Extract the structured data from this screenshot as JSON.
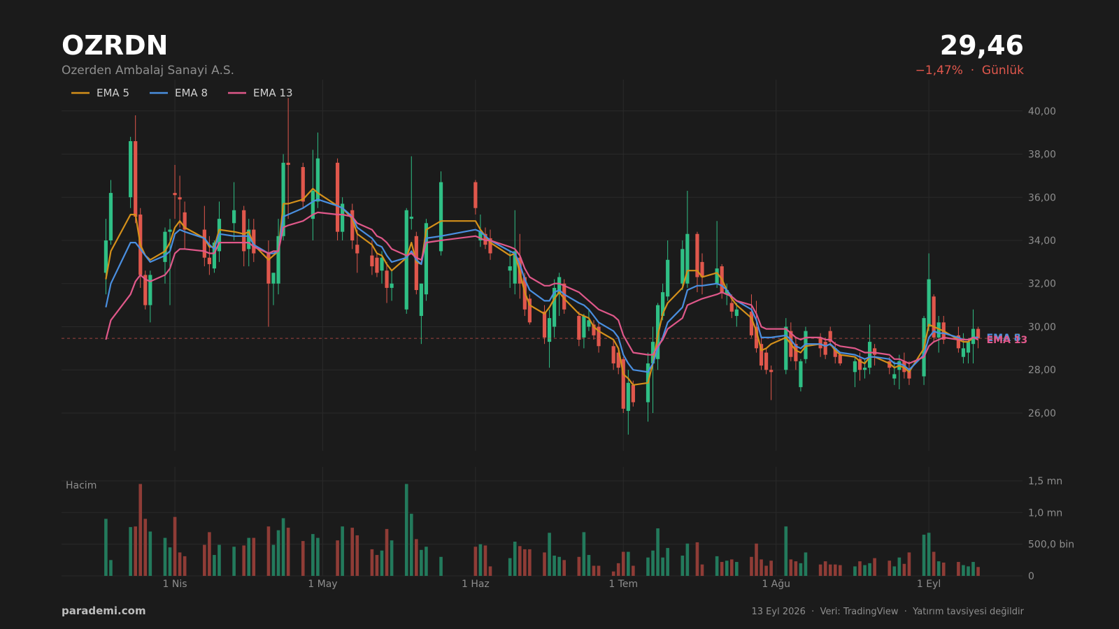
{
  "header": {
    "symbol": "OZRDN",
    "company": "Ozerden Ambalaj Sanayi A.S.",
    "change": "−1,47%",
    "period": "Günlük"
  },
  "chart_data": {
    "type": "candlestick",
    "price": 29.46,
    "price_label": "29,46",
    "xlim": [
      "03-09",
      "09-20"
    ],
    "xticks": [
      {
        "value": "04-01",
        "label": "1 Nis"
      },
      {
        "value": "05-01",
        "label": "1 May"
      },
      {
        "value": "06-01",
        "label": "1 Haz"
      },
      {
        "value": "07-01",
        "label": "1 Tem"
      },
      {
        "value": "08-01",
        "label": "1 Ağu"
      },
      {
        "value": "09-01",
        "label": "1 Eyl"
      }
    ],
    "ylim": [
      24.25,
      41.45
    ],
    "yticks": [
      {
        "value": 26,
        "label": "26,00"
      },
      {
        "value": 28,
        "label": "28,00"
      },
      {
        "value": 30,
        "label": "30,00"
      },
      {
        "value": 32,
        "label": "32,00"
      },
      {
        "value": 34,
        "label": "34,00"
      },
      {
        "value": 36,
        "label": "36,00"
      },
      {
        "value": 38,
        "label": "38,00"
      },
      {
        "value": 40,
        "label": "40,00"
      }
    ],
    "volume_label": "Hacim",
    "volume_ylim": [
      0,
      1720000
    ],
    "volume_yticks": [
      0,
      {
        "value": 500000,
        "label": "500,0 bin"
      },
      {
        "value": 1000000,
        "label": "1,0 mn"
      },
      {
        "value": 1500000,
        "label": "1,5 mn"
      }
    ],
    "grid": true,
    "up_color": "#2fbf85",
    "down_color": "#e0574c",
    "volume_up_color": "#237a5c",
    "volume_down_color": "#8f3c36",
    "price_line_color": "#c0504a",
    "x": [
      "03-18",
      "03-19",
      "03-23",
      "03-24",
      "03-25",
      "03-26",
      "03-27",
      "03-30",
      "03-31",
      "04-01",
      "04-02",
      "04-03",
      "04-07",
      "04-08",
      "04-09",
      "04-10",
      "04-13",
      "04-15",
      "04-16",
      "04-17",
      "04-20",
      "04-21",
      "04-22",
      "04-23",
      "04-24",
      "04-27",
      "04-29",
      "04-30",
      "05-04",
      "05-05",
      "05-07",
      "05-08",
      "05-11",
      "05-12",
      "05-13",
      "05-14",
      "05-15",
      "05-18",
      "05-19",
      "05-20",
      "05-21",
      "05-22",
      "05-25",
      "06-01",
      "06-02",
      "06-03",
      "06-04",
      "06-08",
      "06-09",
      "06-10",
      "06-11",
      "06-12",
      "06-15",
      "06-16",
      "06-17",
      "06-18",
      "06-19",
      "06-22",
      "06-23",
      "06-24",
      "06-25",
      "06-26",
      "06-29",
      "06-30",
      "07-01",
      "07-02",
      "07-03",
      "07-06",
      "07-07",
      "07-08",
      "07-09",
      "07-10",
      "07-13",
      "07-14",
      "07-16",
      "07-17",
      "07-20",
      "07-21",
      "07-22",
      "07-23",
      "07-24",
      "07-27",
      "07-28",
      "07-29",
      "07-30",
      "07-31",
      "08-03",
      "08-04",
      "08-05",
      "08-06",
      "08-07",
      "08-10",
      "08-11",
      "08-12",
      "08-13",
      "08-14",
      "08-17",
      "08-18",
      "08-19",
      "08-20",
      "08-21",
      "08-24",
      "08-25",
      "08-26",
      "08-27",
      "08-28",
      "08-31",
      "09-01",
      "09-02",
      "09-03",
      "09-04",
      "09-07",
      "09-08",
      "09-09",
      "09-10",
      "09-11"
    ],
    "open": [
      32.5,
      34,
      36,
      38.6,
      35.2,
      32.4,
      31,
      33,
      34.4,
      36.2,
      36,
      35.3,
      34.5,
      33.2,
      32.7,
      33.5,
      34.8,
      35.4,
      33.6,
      34.5,
      33.4,
      32,
      32,
      34.2,
      37.6,
      37.4,
      35,
      35.8,
      37.6,
      34.4,
      35.4,
      33.8,
      33.3,
      33.2,
      32.6,
      32.6,
      31.8,
      30.8,
      35,
      34.2,
      30.5,
      31.5,
      33.5,
      36.7,
      34,
      34.3,
      34.1,
      32.6,
      32,
      33.2,
      32.3,
      31.3,
      30.7,
      29.3,
      30,
      31.5,
      32,
      30.5,
      29.5,
      30,
      30.1,
      30,
      29.1,
      28.8,
      28.5,
      26.1,
      27.3,
      26.5,
      28.3,
      28.5,
      30.5,
      31.4,
      32,
      32,
      34.3,
      33,
      32,
      32.8,
      31.5,
      31.1,
      30.5,
      30.7,
      30,
      29.2,
      28.8,
      28,
      28,
      29.8,
      29.2,
      27.2,
      28.5,
      29.5,
      29.3,
      29.8,
      29,
      28.7,
      27.9,
      28.5,
      28,
      28.1,
      29,
      28.4,
      27.6,
      28,
      28.4,
      28,
      27.7,
      30,
      31.4,
      29.5,
      30.2,
      29.6,
      28.6,
      28.8,
      29.2,
      29.9
    ],
    "high": [
      35,
      36.8,
      38.8,
      39.8,
      35.5,
      32.6,
      32.6,
      34.6,
      35,
      37.5,
      37,
      35.8,
      35.6,
      34.2,
      34,
      35.8,
      36.7,
      35.6,
      35,
      35,
      34,
      32.5,
      35,
      38,
      40.6,
      37.6,
      38.2,
      39,
      37.8,
      36,
      35.7,
      34.5,
      34,
      33.4,
      33.5,
      33,
      32.6,
      35.5,
      37.9,
      34.4,
      32,
      35,
      37.2,
      36.8,
      35.2,
      34.6,
      34.5,
      33.5,
      35.4,
      34.3,
      32.5,
      31.5,
      31,
      30.8,
      32.2,
      32.5,
      32.2,
      30.7,
      30.6,
      30.8,
      30.3,
      30.2,
      29.4,
      29,
      28.6,
      28,
      27.5,
      28.8,
      30,
      31.1,
      32,
      34,
      34,
      36.3,
      34.4,
      33.4,
      34.9,
      32.9,
      32,
      31.5,
      31.1,
      31.5,
      31.2,
      29.6,
      29,
      28.2,
      30.4,
      30.2,
      29.5,
      28.5,
      30,
      29.7,
      29.5,
      30,
      29.3,
      28.8,
      28.6,
      28.8,
      28.5,
      30.1,
      29.2,
      28.6,
      28.4,
      28.7,
      28.8,
      28.4,
      30.5,
      33.4,
      31.5,
      30.5,
      30.5,
      30,
      29.7,
      29.4,
      30.8,
      30
    ],
    "low": [
      31.5,
      33.8,
      35.5,
      34.8,
      31.8,
      30.8,
      30.2,
      32,
      31,
      35,
      34.6,
      33.6,
      32.8,
      32.4,
      32.5,
      33,
      34,
      32.8,
      32.8,
      33,
      30,
      31,
      31.5,
      34,
      35,
      35.5,
      34,
      35.5,
      34,
      34,
      33.6,
      32.5,
      32.4,
      32.3,
      32,
      31.1,
      31.2,
      30.6,
      34.5,
      31.5,
      29.2,
      31.2,
      33.3,
      35.2,
      33.7,
      33.6,
      33.1,
      31.8,
      31.5,
      31.3,
      30.5,
      30.1,
      29.2,
      28.1,
      29.5,
      30.5,
      30.6,
      29.1,
      29,
      29.8,
      29.4,
      28.8,
      28,
      27.8,
      26,
      25,
      26.3,
      25.6,
      26,
      28,
      30.3,
      31.2,
      31.7,
      31.8,
      31.6,
      31.5,
      31.8,
      31.3,
      31,
      30.4,
      30,
      29.5,
      28.8,
      28,
      27.8,
      26.6,
      27.8,
      28.4,
      28,
      27,
      28.3,
      28.6,
      28.5,
      29.1,
      28.3,
      28.2,
      27.2,
      27.5,
      27.6,
      27.8,
      28.2,
      27.8,
      27.3,
      27.1,
      27.6,
      27.3,
      27.3,
      29.8,
      29.3,
      28.8,
      29.2,
      28.8,
      28.3,
      28.3,
      28.3,
      29
    ],
    "close": [
      34,
      36.2,
      38.6,
      35.1,
      32.4,
      31,
      32.4,
      34.4,
      34.5,
      36.1,
      35.9,
      34.5,
      33.2,
      32.9,
      33.9,
      35,
      35.4,
      33.5,
      34.5,
      33.4,
      32,
      32.5,
      34.2,
      37.6,
      37.5,
      35.8,
      36.3,
      37.8,
      34.4,
      35.7,
      34,
      33.4,
      32.8,
      32.5,
      33.2,
      31.8,
      32,
      35.4,
      35.1,
      31.7,
      32,
      34.8,
      36.7,
      35.5,
      34.4,
      33.8,
      33.4,
      32.8,
      33.5,
      32,
      30.8,
      30.2,
      29.5,
      30.4,
      31.8,
      32.3,
      30.8,
      29.4,
      30.5,
      30.3,
      29.6,
      29.1,
      28.3,
      28.1,
      26.2,
      27.4,
      26.5,
      28.3,
      29.3,
      31,
      31.6,
      33.1,
      33.6,
      34.3,
      32.3,
      32.3,
      32.7,
      31.6,
      31.7,
      30.7,
      30.8,
      29.6,
      29,
      28.2,
      28,
      27.9,
      30,
      28.6,
      28.4,
      28.4,
      29.8,
      29,
      28.7,
      29.3,
      28.6,
      28.3,
      28.4,
      28,
      28.1,
      29.3,
      28.7,
      28.1,
      27.8,
      28.4,
      27.9,
      27.6,
      30.4,
      32.2,
      29.5,
      30.2,
      29.4,
      29,
      29,
      29.3,
      29.9,
      29.46
    ],
    "volume": [
      900000,
      250000,
      770000,
      780000,
      1450000,
      900000,
      700000,
      600000,
      450000,
      930000,
      370000,
      310000,
      490000,
      690000,
      330000,
      490000,
      460000,
      480000,
      600000,
      600000,
      780000,
      490000,
      720000,
      910000,
      760000,
      550000,
      660000,
      600000,
      560000,
      780000,
      760000,
      640000,
      420000,
      330000,
      400000,
      740000,
      560000,
      1450000,
      980000,
      580000,
      410000,
      460000,
      300000,
      460000,
      500000,
      480000,
      150000,
      280000,
      540000,
      470000,
      420000,
      420000,
      370000,
      680000,
      320000,
      300000,
      250000,
      300000,
      690000,
      330000,
      160000,
      160000,
      70000,
      200000,
      380000,
      380000,
      160000,
      290000,
      400000,
      750000,
      290000,
      440000,
      320000,
      510000,
      530000,
      180000,
      310000,
      220000,
      240000,
      260000,
      220000,
      300000,
      510000,
      260000,
      160000,
      240000,
      780000,
      260000,
      230000,
      200000,
      370000,
      180000,
      230000,
      180000,
      180000,
      170000,
      150000,
      230000,
      170000,
      200000,
      280000,
      240000,
      150000,
      290000,
      190000,
      370000,
      650000,
      680000,
      380000,
      230000,
      210000,
      220000,
      170000,
      150000,
      220000,
      140000
    ],
    "series": [
      {
        "name": "EMA 5",
        "color": "#d4901a",
        "values": [
          32.2,
          33.5,
          35.2,
          35.2,
          33.8,
          33.3,
          33.1,
          33.5,
          33.9,
          34.6,
          34.9,
          34.6,
          34.1,
          33.7,
          33.7,
          34.5,
          34.4,
          34.3,
          34.4,
          33.8,
          33.1,
          33.3,
          33.5,
          35.7,
          35.7,
          35.9,
          36.4,
          36.2,
          35.6,
          35.5,
          35,
          34.3,
          33.8,
          33.4,
          33.3,
          32.9,
          32.6,
          33.2,
          33.9,
          33,
          32.9,
          34.5,
          34.9,
          34.9,
          34.5,
          34.2,
          33.9,
          33.3,
          33.4,
          32.5,
          31.6,
          31,
          30.6,
          30.9,
          31.3,
          31.6,
          31.3,
          30.6,
          30.5,
          30.4,
          30,
          29.8,
          29.4,
          29,
          27.8,
          27.6,
          27.3,
          27.4,
          28.3,
          29.6,
          30.6,
          31.1,
          31.8,
          32.6,
          32.6,
          32.3,
          32.5,
          32.2,
          31.7,
          31.3,
          31,
          30.4,
          29.8,
          28.9,
          29,
          29.2,
          29.5,
          29.2,
          28.9,
          28.8,
          29.1,
          29.2,
          29.1,
          29.2,
          28.9,
          28.7,
          28.6,
          28.4,
          28.3,
          28.6,
          28.6,
          28.3,
          28.1,
          28.2,
          28.1,
          27.9,
          29,
          30.1,
          30,
          29.9,
          29.8,
          29.4,
          29.3,
          29.3,
          29.5,
          29.5
        ]
      },
      {
        "name": "EMA 8",
        "color": "#4a8fe0",
        "values": [
          30.9,
          32,
          33.9,
          33.9,
          33.6,
          33.3,
          33,
          33.3,
          33.5,
          34.3,
          34.5,
          34.4,
          34.1,
          33.8,
          33.6,
          34.3,
          34.2,
          34.2,
          34.2,
          33.8,
          33.4,
          33.4,
          33.5,
          35.1,
          35.2,
          35.5,
          35.8,
          35.9,
          35.6,
          35.5,
          35.1,
          34.6,
          34.1,
          33.8,
          33.7,
          33.3,
          33,
          33.2,
          33.5,
          33.1,
          32.9,
          34.1,
          34.2,
          34.5,
          34.4,
          34.2,
          34,
          33.5,
          33.4,
          32.9,
          32.2,
          31.7,
          31.2,
          31.2,
          31.6,
          31.7,
          31.5,
          31.1,
          31,
          30.8,
          30.5,
          30.2,
          29.8,
          29.5,
          28.7,
          28.3,
          28,
          27.9,
          28.3,
          29,
          29.5,
          30.2,
          30.9,
          31.7,
          31.9,
          31.9,
          32,
          31.9,
          31.7,
          31.4,
          31.2,
          30.8,
          30.3,
          29.5,
          29.5,
          29.5,
          29.6,
          29.4,
          29.1,
          29,
          29.2,
          29.2,
          29.1,
          29.2,
          29,
          28.8,
          28.7,
          28.6,
          28.5,
          28.6,
          28.6,
          28.5,
          28.3,
          28.3,
          28.2,
          28,
          28.7,
          29.5,
          29.8,
          29.7,
          29.7,
          29.5,
          29.4,
          29.4,
          29.5,
          29.5
        ]
      },
      {
        "name": "EMA 13",
        "color": "#e0588a",
        "values": [
          29.4,
          30.3,
          31.5,
          32.1,
          32.4,
          32.2,
          32.1,
          32.4,
          32.7,
          33.4,
          33.6,
          33.6,
          33.5,
          33.4,
          33.4,
          33.9,
          33.9,
          33.9,
          33.9,
          33.7,
          33.4,
          33.5,
          33.5,
          34.6,
          34.7,
          34.9,
          35.2,
          35.3,
          35.2,
          35.2,
          35.1,
          34.8,
          34.5,
          34.2,
          34.1,
          33.9,
          33.6,
          33.3,
          33.4,
          33.2,
          33.1,
          33.9,
          34,
          34.2,
          34.1,
          34,
          34,
          33.7,
          33.6,
          33.3,
          32.7,
          32.3,
          31.9,
          31.9,
          32,
          32,
          31.9,
          31.6,
          31.4,
          31.2,
          31,
          30.8,
          30.5,
          30.3,
          29.6,
          29.2,
          28.8,
          28.7,
          28.7,
          29.1,
          29.4,
          29.9,
          30.4,
          31,
          31.2,
          31.3,
          31.5,
          31.6,
          31.5,
          31.4,
          31.2,
          31,
          30.6,
          30,
          29.9,
          29.9,
          29.9,
          29.7,
          29.5,
          29.4,
          29.5,
          29.5,
          29.4,
          29.4,
          29.2,
          29.1,
          29,
          28.9,
          28.8,
          28.8,
          28.8,
          28.7,
          28.5,
          28.5,
          28.4,
          28.3,
          28.6,
          29.1,
          29.3,
          29.4,
          29.5,
          29.4,
          29.4,
          29.4,
          29.5,
          29.4
        ]
      }
    ]
  },
  "footer": {
    "brand": "parademi.com",
    "note": "13 Eyl 2026  ·  Veri: TradingView  ·  Yatırım tavsiyesi değildir"
  }
}
